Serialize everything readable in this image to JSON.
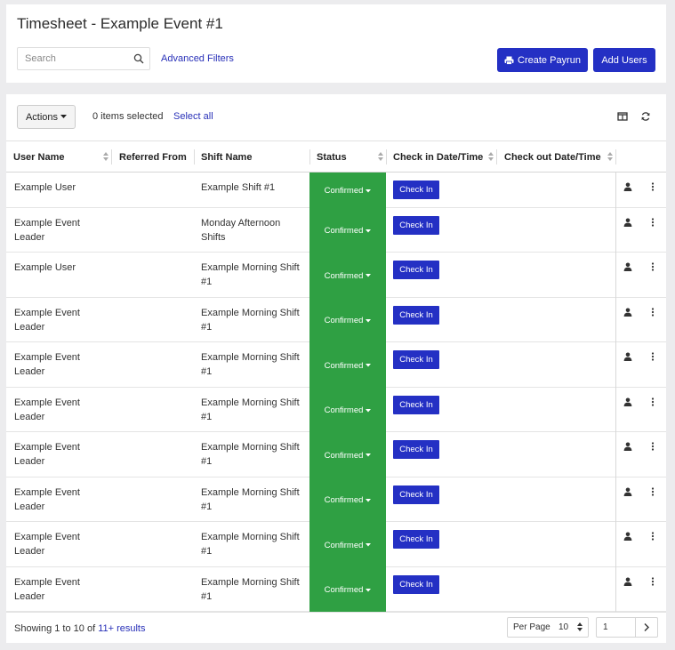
{
  "header": {
    "title": "Timesheet - Example Event #1",
    "search_placeholder": "Search",
    "advanced_filters": "Advanced Filters",
    "create_payrun": "Create Payrun",
    "add_users": "Add Users"
  },
  "toolbar": {
    "actions_label": "Actions",
    "selected_text": "0 items selected",
    "select_all": "Select all"
  },
  "columns": {
    "user_name": "User Name",
    "referred_from": "Referred From",
    "shift_name": "Shift Name",
    "status": "Status",
    "check_in": "Check in Date/Time",
    "check_out": "Check out Date/Time"
  },
  "rows": [
    {
      "user_l1": "Example User",
      "user_l2": "",
      "referred": "",
      "shift_l1": "Example Shift #1",
      "shift_l2": "",
      "status": "Confirmed",
      "action": "Check In"
    },
    {
      "user_l1": "Example Event",
      "user_l2": "Leader",
      "referred": "",
      "shift_l1": "Monday Afternoon",
      "shift_l2": "Shifts",
      "status": "Confirmed",
      "action": "Check In"
    },
    {
      "user_l1": "Example User",
      "user_l2": "",
      "referred": "",
      "shift_l1": "Example Morning Shift",
      "shift_l2": "#1",
      "status": "Confirmed",
      "action": "Check In"
    },
    {
      "user_l1": "Example Event",
      "user_l2": "Leader",
      "referred": "",
      "shift_l1": "Example Morning Shift",
      "shift_l2": "#1",
      "status": "Confirmed",
      "action": "Check In"
    },
    {
      "user_l1": "Example Event",
      "user_l2": "Leader",
      "referred": "",
      "shift_l1": "Example Morning Shift",
      "shift_l2": "#1",
      "status": "Confirmed",
      "action": "Check In"
    },
    {
      "user_l1": "Example Event",
      "user_l2": "Leader",
      "referred": "",
      "shift_l1": "Example Morning Shift",
      "shift_l2": "#1",
      "status": "Confirmed",
      "action": "Check In"
    },
    {
      "user_l1": "Example Event",
      "user_l2": "Leader",
      "referred": "",
      "shift_l1": "Example Morning Shift",
      "shift_l2": "#1",
      "status": "Confirmed",
      "action": "Check In"
    },
    {
      "user_l1": "Example Event",
      "user_l2": "Leader",
      "referred": "",
      "shift_l1": "Example Morning Shift",
      "shift_l2": "#1",
      "status": "Confirmed",
      "action": "Check In"
    },
    {
      "user_l1": "Example Event",
      "user_l2": "Leader",
      "referred": "",
      "shift_l1": "Example Morning Shift",
      "shift_l2": "#1",
      "status": "Confirmed",
      "action": "Check In"
    },
    {
      "user_l1": "Example Event",
      "user_l2": "Leader",
      "referred": "",
      "shift_l1": "Example Morning Shift",
      "shift_l2": "#1",
      "status": "Confirmed",
      "action": "Check In"
    }
  ],
  "footer": {
    "showing_prefix": "Showing 1 to 10 of",
    "results_link": "11+ results",
    "per_page_label": "Per Page",
    "per_page_value": "10",
    "page_value": "1"
  },
  "colors": {
    "primary": "#2430c4",
    "status_confirmed": "#2fa043",
    "link": "#2830b8"
  },
  "icons": {
    "search": "search-icon",
    "payrun": "printer-icon",
    "columns": "columns-icon",
    "refresh": "refresh-icon",
    "user": "user-icon",
    "more": "kebab-icon"
  }
}
